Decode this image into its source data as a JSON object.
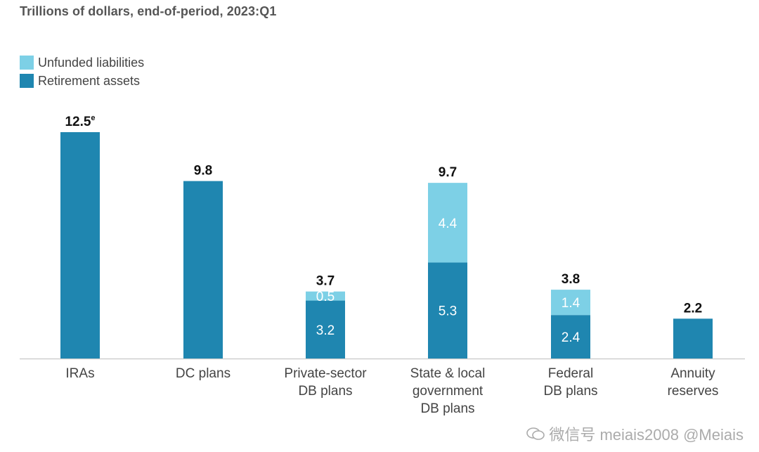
{
  "chart_data": {
    "type": "bar",
    "stacked": true,
    "subtitle": "Trillions of dollars, end-of-period, 2023:Q1",
    "categories": [
      [
        "IRAs"
      ],
      [
        "DC plans"
      ],
      [
        "Private-sector",
        "DB plans"
      ],
      [
        "State & local",
        "government",
        "DB plans"
      ],
      [
        "Federal",
        "DB plans"
      ],
      [
        "Annuity",
        "reserves"
      ]
    ],
    "series": [
      {
        "name": "Retirement assets",
        "color": "#1f86b0",
        "values": [
          12.5,
          9.8,
          3.2,
          5.3,
          2.4,
          2.2
        ],
        "labels": [
          "",
          "",
          "3.2",
          "5.3",
          "2.4",
          ""
        ]
      },
      {
        "name": "Unfunded liabilities",
        "color": "#7dd0e6",
        "values": [
          0,
          0,
          0.5,
          4.4,
          1.4,
          0
        ],
        "labels": [
          "",
          "",
          "0.5",
          "4.4",
          "1.4",
          ""
        ]
      }
    ],
    "totals": [
      "12.5",
      "9.8",
      "3.7",
      "9.7",
      "3.8",
      "2.2"
    ],
    "total_superscripts": [
      "e",
      "",
      "",
      "",
      "",
      ""
    ],
    "ylim": [
      0,
      12.5
    ],
    "grid": false,
    "legend_position": "top-left",
    "legend_order": [
      1,
      0
    ]
  },
  "watermark": {
    "text": "微信号 meiais2008  @Meiais"
  }
}
